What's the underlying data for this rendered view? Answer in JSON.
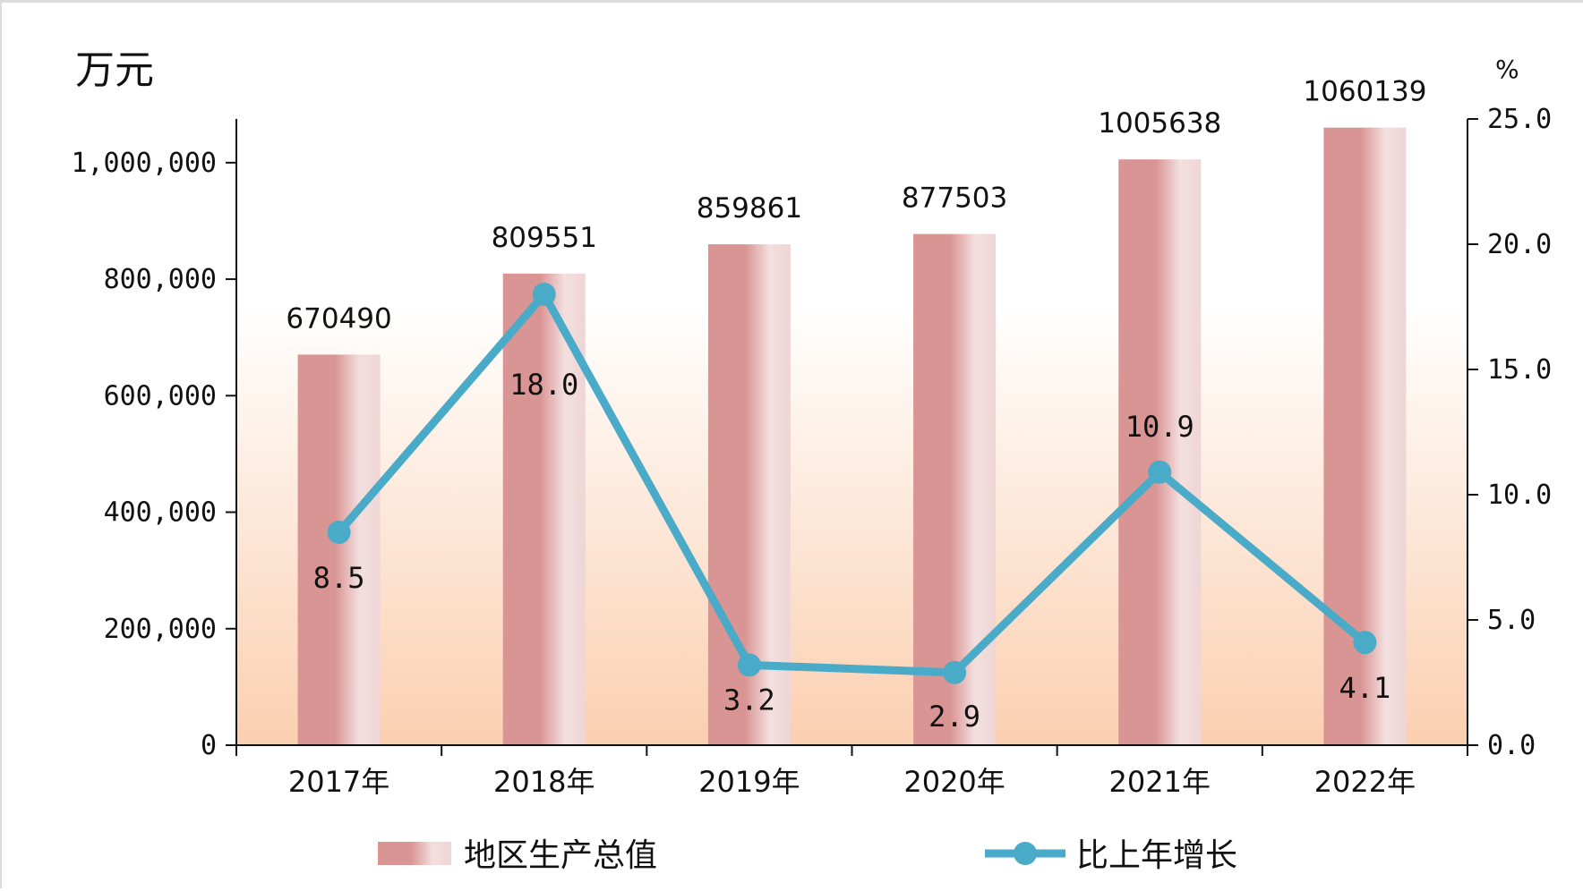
{
  "chart_data": {
    "type": "bar",
    "categories": [
      "2017年",
      "2018年",
      "2019年",
      "2020年",
      "2021年",
      "2022年"
    ],
    "series": [
      {
        "name": "地区生产总值",
        "type": "bar",
        "axis": "left",
        "values": [
          670490,
          809551,
          859861,
          877503,
          1005638,
          1060139
        ],
        "value_labels": [
          "670490",
          "809551",
          "859861",
          "877503",
          "1005638",
          "1060139"
        ]
      },
      {
        "name": "比上年增长",
        "type": "line",
        "axis": "right",
        "values": [
          8.5,
          18.0,
          3.2,
          2.9,
          10.9,
          4.1
        ],
        "value_labels": [
          "8.5",
          "18.0",
          "3.2",
          "2.9",
          "10.9",
          "4.1"
        ]
      }
    ],
    "y_left": {
      "unit": "万元",
      "min": 0,
      "max": 1075000,
      "ticks": [
        0,
        200000,
        400000,
        600000,
        800000,
        1000000
      ],
      "tick_labels": [
        "0",
        "200,000",
        "400,000",
        "600,000",
        "800,000",
        "1,000,000"
      ]
    },
    "y_right": {
      "unit": "%",
      "min": 0,
      "max": 25,
      "ticks": [
        0,
        5,
        10,
        15,
        20,
        25
      ],
      "tick_labels": [
        "0.0",
        "5.0",
        "10.0",
        "15.0",
        "20.0",
        "25.0"
      ]
    },
    "legend_position": "bottom",
    "grid": false,
    "colors": {
      "bar": "#d99593",
      "bar_highlight": "#f3dfdf",
      "line": "#4aabc8",
      "bg_top": "#ffffff",
      "bg_bottom": "#fbcfb0"
    }
  }
}
